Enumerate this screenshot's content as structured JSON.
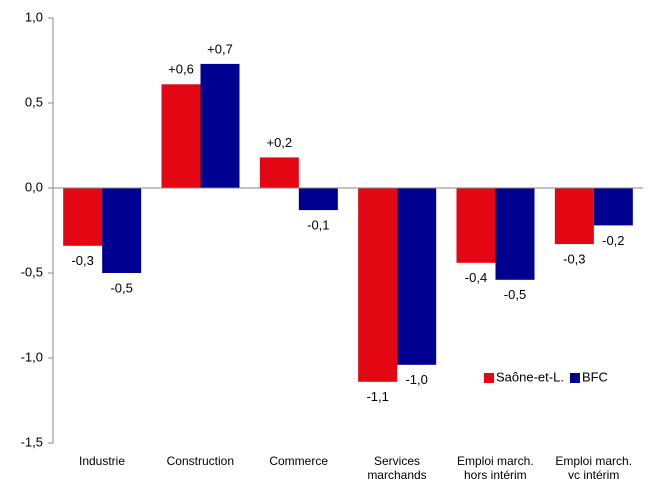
{
  "chart_data": {
    "type": "bar",
    "categories": [
      "Industrie",
      "Construction",
      "Commerce",
      "Services\nmarchands",
      "Emploi march.\nhors intérim",
      "Emploi march.\nyc intérim"
    ],
    "series": [
      {
        "name": "Saône-et-L.",
        "color": "#e30613",
        "values": [
          -0.34,
          0.61,
          0.18,
          -1.14,
          -0.44,
          -0.33
        ],
        "value_labels": [
          "-0,3",
          "+0,6",
          "+0,2",
          "-1,1",
          "-0,4",
          "-0,3"
        ]
      },
      {
        "name": "BFC",
        "color": "#000090",
        "values": [
          -0.5,
          0.73,
          -0.13,
          -1.04,
          -0.54,
          -0.22
        ],
        "value_labels": [
          "-0,5",
          "+0,7",
          "-0,1",
          "-1,0",
          "-0,5",
          "-0,2"
        ]
      }
    ],
    "ylim": [
      -1.5,
      1.0
    ],
    "yticks": [
      {
        "value": -1.5,
        "label": "-1,5"
      },
      {
        "value": -1.0,
        "label": "-1,0"
      },
      {
        "value": -0.5,
        "label": "-0,5"
      },
      {
        "value": 0,
        "label": "0,0"
      },
      {
        "value": 0.5,
        "label": "0,5"
      },
      {
        "value": 1.0,
        "label": "1,0"
      }
    ],
    "legend": "lower right"
  }
}
